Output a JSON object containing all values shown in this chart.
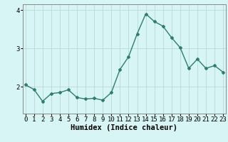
{
  "x": [
    0,
    1,
    2,
    3,
    4,
    5,
    6,
    7,
    8,
    9,
    10,
    11,
    12,
    13,
    14,
    15,
    16,
    17,
    18,
    19,
    20,
    21,
    22,
    23
  ],
  "y": [
    2.05,
    1.93,
    1.62,
    1.82,
    1.85,
    1.92,
    1.72,
    1.68,
    1.7,
    1.65,
    1.85,
    2.45,
    2.78,
    3.38,
    3.9,
    3.7,
    3.58,
    3.28,
    3.02,
    2.48,
    2.72,
    2.48,
    2.55,
    2.38
  ],
  "line_color": "#2e7d6e",
  "marker": "D",
  "markersize": 2.0,
  "linewidth": 1.0,
  "bg_color": "#d8f5f5",
  "grid_color": "#b8d8d8",
  "xlabel": "Humidex (Indice chaleur)",
  "xlabel_fontsize": 7.5,
  "tick_fontsize": 6.5,
  "ylim": [
    1.3,
    4.15
  ],
  "yticks": [
    2,
    3,
    4
  ],
  "xticks": [
    0,
    1,
    2,
    3,
    4,
    5,
    6,
    7,
    8,
    9,
    10,
    11,
    12,
    13,
    14,
    15,
    16,
    17,
    18,
    19,
    20,
    21,
    22,
    23
  ],
  "spine_color": "#888888"
}
